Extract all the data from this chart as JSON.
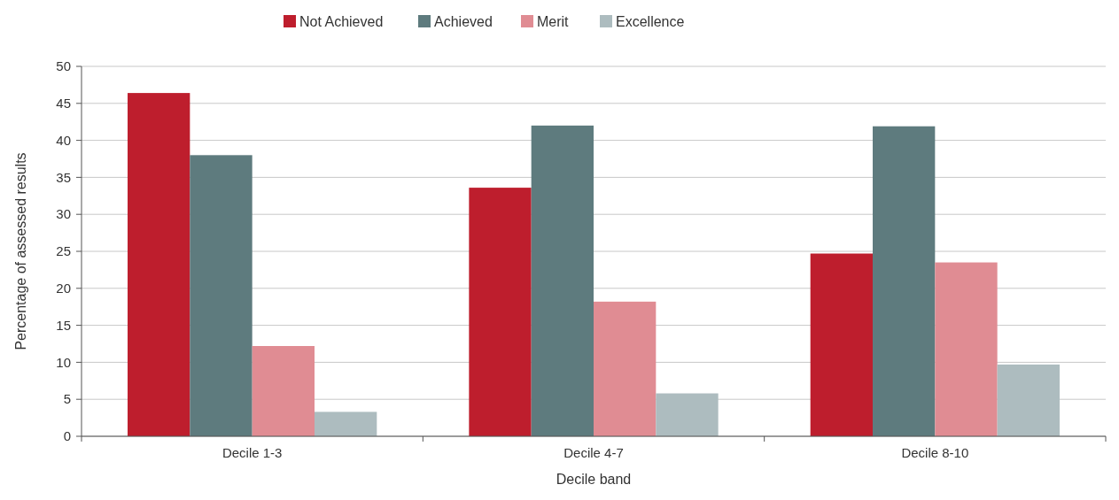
{
  "chart_data": {
    "type": "bar",
    "xlabel": "Decile band",
    "ylabel": "Percentage of assessed results",
    "categories": [
      "Decile 1-3",
      "Decile 4-7",
      "Decile 8-10"
    ],
    "series": [
      {
        "name": "Not Achieved",
        "color": "#be1e2d",
        "values": [
          46.4,
          33.6,
          24.7
        ]
      },
      {
        "name": "Achieved",
        "color": "#5e7b7e",
        "values": [
          38.0,
          42.0,
          41.9
        ]
      },
      {
        "name": "Merit",
        "color": "#e08c93",
        "values": [
          12.2,
          18.2,
          23.5
        ]
      },
      {
        "name": "Excellence",
        "color": "#adbcbf",
        "values": [
          3.3,
          5.8,
          9.7
        ]
      }
    ],
    "ylim": [
      0,
      50
    ],
    "yticks": [
      0,
      5,
      10,
      15,
      20,
      25,
      30,
      35,
      40,
      45,
      50
    ],
    "grid": "y",
    "legend": "top"
  }
}
